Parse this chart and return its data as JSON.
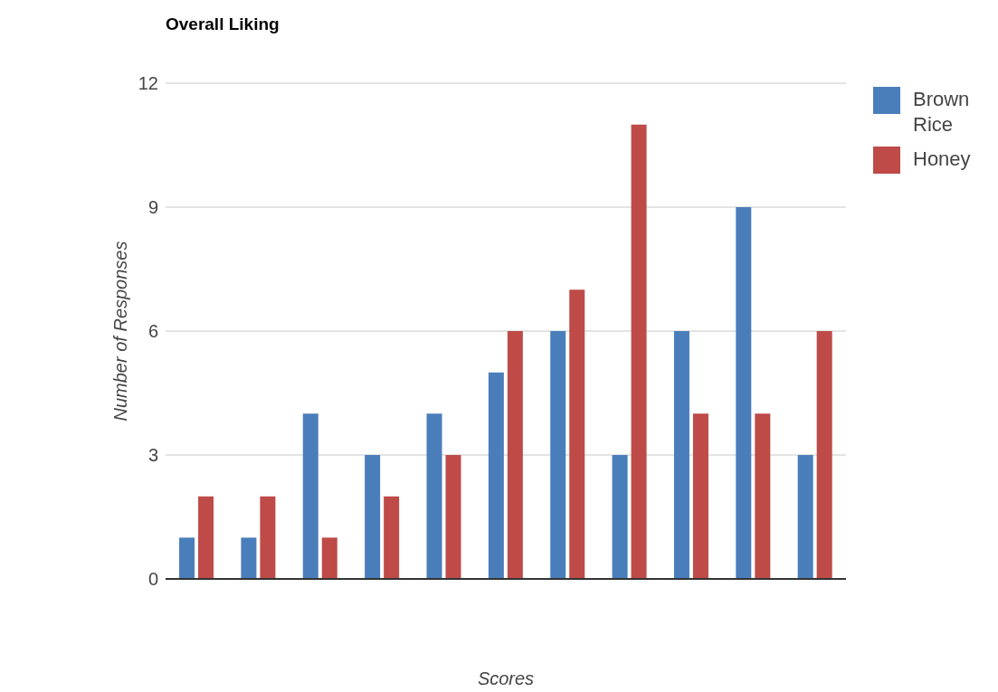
{
  "chart_data": {
    "type": "bar",
    "title": "Overall Liking",
    "xlabel": "Scores",
    "ylabel": "Number of Responses",
    "categories": [
      null,
      null,
      null,
      null,
      null,
      null,
      null,
      null,
      null,
      null,
      null
    ],
    "series": [
      {
        "name": "Brown Rice",
        "color": "#4a7ebb",
        "values": [
          1,
          1,
          4,
          3,
          4,
          5,
          6,
          3,
          6,
          9,
          3
        ]
      },
      {
        "name": "Honey",
        "color": "#be4b48",
        "values": [
          2,
          2,
          1,
          2,
          3,
          6,
          7,
          11,
          4,
          4,
          6
        ]
      }
    ],
    "ylim": [
      0,
      12
    ],
    "yticks": [
      0,
      3,
      6,
      9,
      12
    ],
    "grid": "y",
    "legend": "right"
  }
}
